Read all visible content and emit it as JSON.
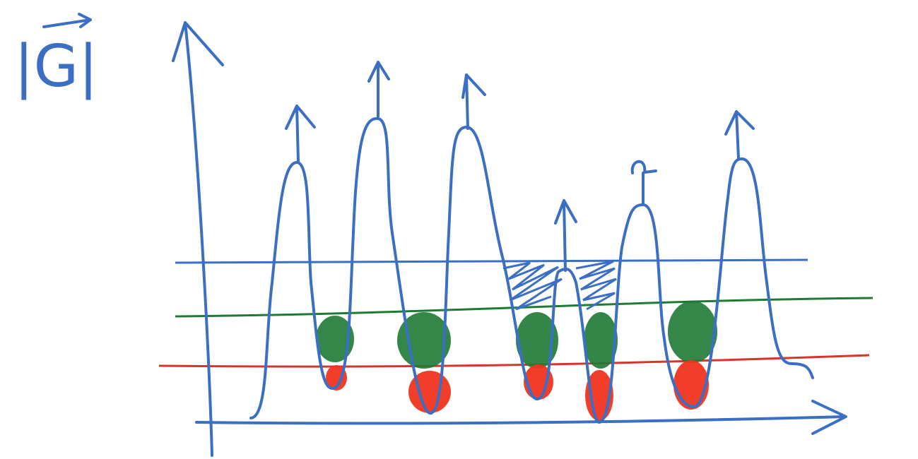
{
  "axis_label": "|G|"
}
